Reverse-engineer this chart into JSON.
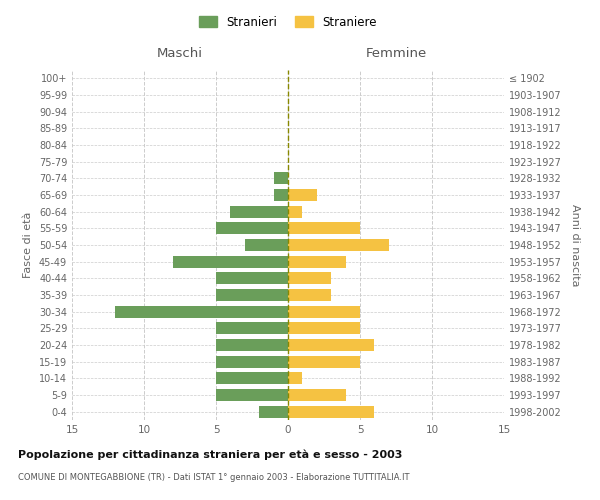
{
  "age_groups": [
    "0-4",
    "5-9",
    "10-14",
    "15-19",
    "20-24",
    "25-29",
    "30-34",
    "35-39",
    "40-44",
    "45-49",
    "50-54",
    "55-59",
    "60-64",
    "65-69",
    "70-74",
    "75-79",
    "80-84",
    "85-89",
    "90-94",
    "95-99",
    "100+"
  ],
  "birth_years": [
    "1998-2002",
    "1993-1997",
    "1988-1992",
    "1983-1987",
    "1978-1982",
    "1973-1977",
    "1968-1972",
    "1963-1967",
    "1958-1962",
    "1953-1957",
    "1948-1952",
    "1943-1947",
    "1938-1942",
    "1933-1937",
    "1928-1932",
    "1923-1927",
    "1918-1922",
    "1913-1917",
    "1908-1912",
    "1903-1907",
    "≤ 1902"
  ],
  "males": [
    2,
    5,
    5,
    5,
    5,
    5,
    12,
    5,
    5,
    8,
    3,
    5,
    4,
    1,
    1,
    0,
    0,
    0,
    0,
    0,
    0
  ],
  "females": [
    6,
    4,
    1,
    5,
    6,
    5,
    5,
    3,
    3,
    4,
    7,
    5,
    1,
    2,
    0,
    0,
    0,
    0,
    0,
    0,
    0
  ],
  "color_male": "#6a9e5a",
  "color_female": "#f5c242",
  "title": "Popolazione per cittadinanza straniera per età e sesso - 2003",
  "subtitle": "COMUNE DI MONTEGABBIONE (TR) - Dati ISTAT 1° gennaio 2003 - Elaborazione TUTTITALIA.IT",
  "legend_male": "Stranieri",
  "legend_female": "Straniere",
  "xlabel_left": "Maschi",
  "xlabel_right": "Femmine",
  "ylabel_left": "Fasce di età",
  "ylabel_right": "Anni di nascita",
  "xlim": 15,
  "background_color": "#ffffff",
  "grid_color": "#cccccc"
}
